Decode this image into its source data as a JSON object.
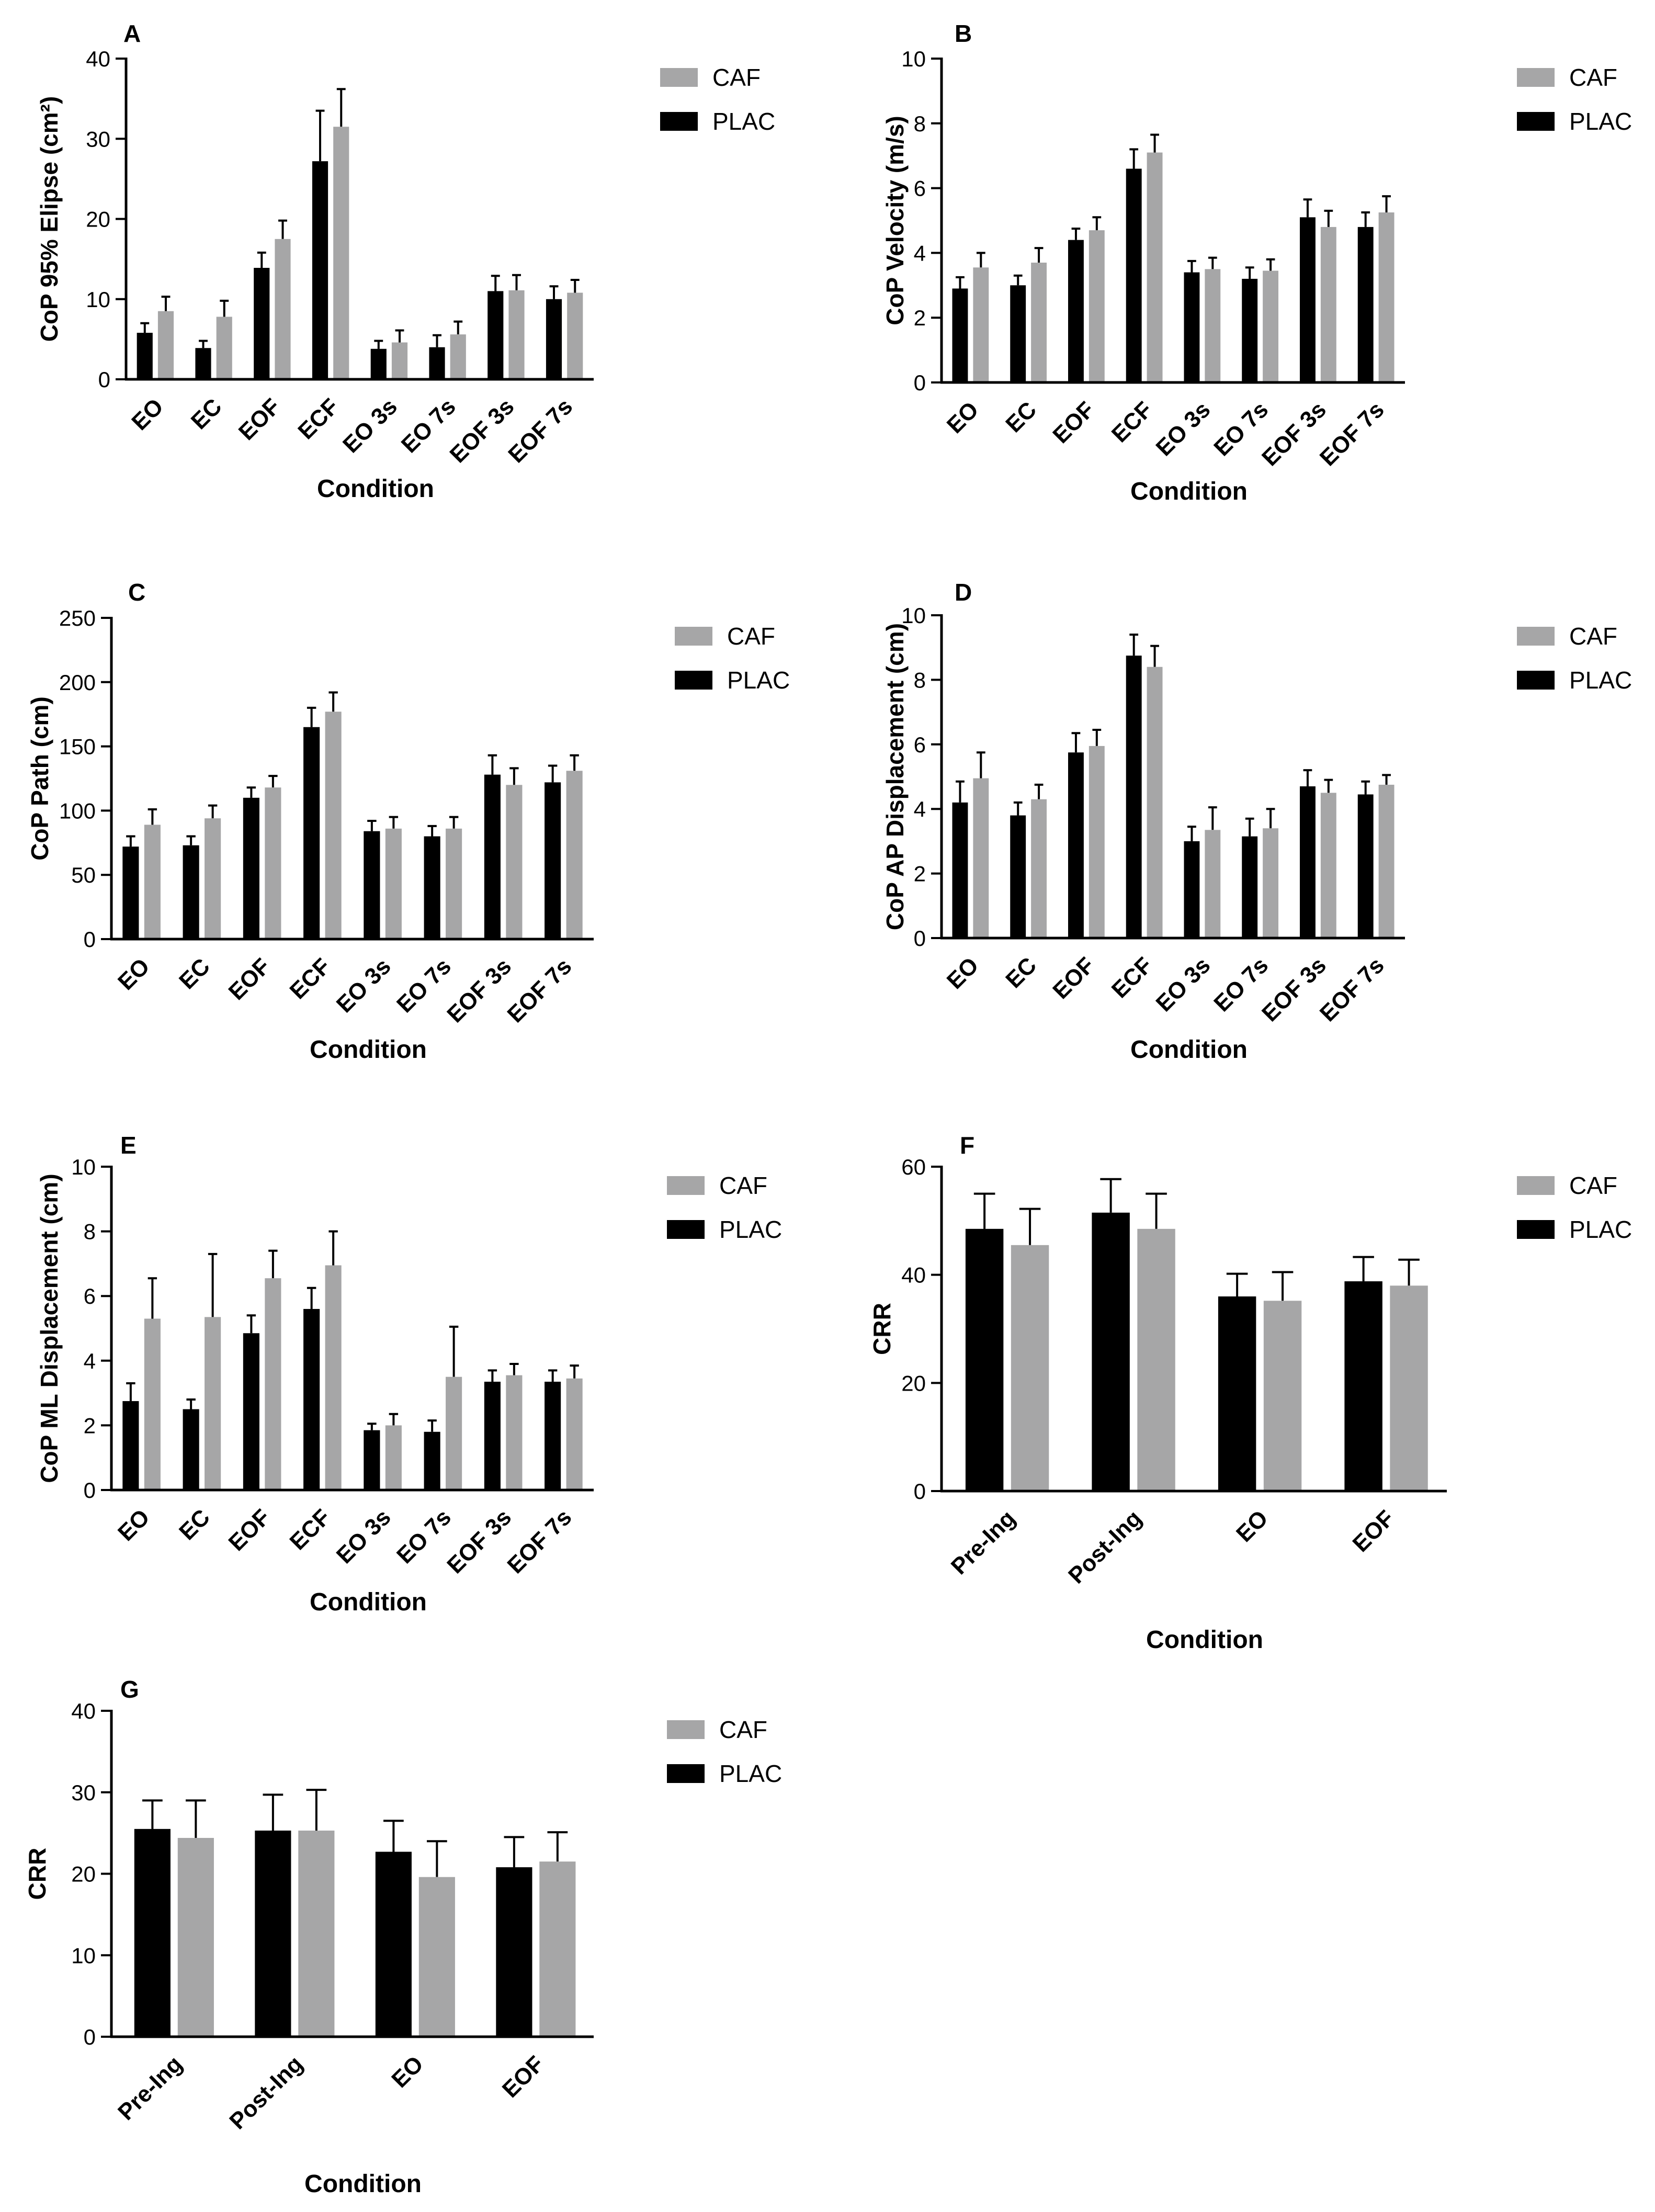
{
  "legend_labels": {
    "caf": "CAF",
    "plac": "PLAC"
  },
  "colors": {
    "caf": "#a6a6a7",
    "plac": "#000000"
  },
  "chart_data": [
    {
      "panel": "A",
      "type": "bar",
      "ylabel": "CoP 95% Elipse (cm²)",
      "xlabel": "Condition",
      "ylim": [
        0,
        40
      ],
      "yticks": [
        0,
        10,
        20,
        30,
        40
      ],
      "categories": [
        "EO",
        "EC",
        "EOF",
        "ECF",
        "EO 3s",
        "EO 7s",
        "EOF 3s",
        "EOF 7s"
      ],
      "series": [
        {
          "name": "PLAC",
          "values": [
            5.8,
            3.9,
            13.9,
            27.2,
            3.8,
            4.0,
            11.0,
            10.0
          ],
          "errors": [
            1.2,
            0.9,
            1.9,
            6.3,
            1.0,
            1.5,
            1.9,
            1.6
          ]
        },
        {
          "name": "CAF",
          "values": [
            8.5,
            7.8,
            17.5,
            31.5,
            4.6,
            5.6,
            11.1,
            10.8
          ],
          "errors": [
            1.8,
            2.0,
            2.3,
            4.7,
            1.5,
            1.6,
            1.9,
            1.6
          ]
        }
      ],
      "legend": "top-right"
    },
    {
      "panel": "B",
      "type": "bar",
      "ylabel": "CoP Velocity (m/s)",
      "xlabel": "Condition",
      "ylim": [
        0,
        10
      ],
      "yticks": [
        0,
        2,
        4,
        6,
        8,
        10
      ],
      "categories": [
        "EO",
        "EC",
        "EOF",
        "ECF",
        "EO 3s",
        "EO 7s",
        "EOF 3s",
        "EOF 7s"
      ],
      "series": [
        {
          "name": "PLAC",
          "values": [
            2.9,
            3.0,
            4.4,
            6.6,
            3.4,
            3.2,
            5.1,
            4.8
          ],
          "errors": [
            0.35,
            0.3,
            0.35,
            0.6,
            0.35,
            0.35,
            0.55,
            0.45
          ]
        },
        {
          "name": "CAF",
          "values": [
            3.55,
            3.7,
            4.7,
            7.1,
            3.5,
            3.45,
            4.8,
            5.25
          ],
          "errors": [
            0.45,
            0.45,
            0.4,
            0.55,
            0.35,
            0.35,
            0.5,
            0.5
          ]
        }
      ],
      "legend": "top-right"
    },
    {
      "panel": "C",
      "type": "bar",
      "ylabel": "CoP Path (cm)",
      "xlabel": "Condition",
      "ylim": [
        0,
        250
      ],
      "yticks": [
        0,
        50,
        100,
        150,
        200,
        250
      ],
      "categories": [
        "EO",
        "EC",
        "EOF",
        "ECF",
        "EO 3s",
        "EO 7s",
        "EOF 3s",
        "EOF 7s"
      ],
      "series": [
        {
          "name": "PLAC",
          "values": [
            72,
            73,
            110,
            165,
            84,
            80,
            128,
            122
          ],
          "errors": [
            8,
            7,
            8,
            15,
            8,
            8,
            15,
            13
          ]
        },
        {
          "name": "CAF",
          "values": [
            89,
            94,
            118,
            177,
            86,
            86,
            120,
            131
          ],
          "errors": [
            12,
            10,
            9,
            15,
            9,
            9,
            13,
            12
          ]
        }
      ],
      "legend": "top-right"
    },
    {
      "panel": "D",
      "type": "bar",
      "ylabel": "CoP AP Displacement (cm)",
      "xlabel": "Condition",
      "ylim": [
        0,
        10
      ],
      "yticks": [
        0,
        2,
        4,
        6,
        8,
        10
      ],
      "categories": [
        "EO",
        "EC",
        "EOF",
        "ECF",
        "EO 3s",
        "EO 7s",
        "EOF 3s",
        "EOF 7s"
      ],
      "series": [
        {
          "name": "PLAC",
          "values": [
            4.2,
            3.8,
            5.75,
            8.75,
            3.0,
            3.15,
            4.7,
            4.45
          ],
          "errors": [
            0.65,
            0.4,
            0.6,
            0.65,
            0.45,
            0.55,
            0.5,
            0.4
          ]
        },
        {
          "name": "CAF",
          "values": [
            4.95,
            4.3,
            5.95,
            8.4,
            3.35,
            3.4,
            4.5,
            4.75
          ],
          "errors": [
            0.8,
            0.45,
            0.5,
            0.65,
            0.7,
            0.6,
            0.4,
            0.3
          ]
        }
      ],
      "legend": "top-right"
    },
    {
      "panel": "E",
      "type": "bar",
      "ylabel": "CoP ML Displacement (cm)",
      "xlabel": "Condition",
      "ylim": [
        0,
        10
      ],
      "yticks": [
        0,
        2,
        4,
        6,
        8,
        10
      ],
      "categories": [
        "EO",
        "EC",
        "EOF",
        "ECF",
        "EO 3s",
        "EO 7s",
        "EOF 3s",
        "EOF 7s"
      ],
      "series": [
        {
          "name": "PLAC",
          "values": [
            2.75,
            2.5,
            4.85,
            5.6,
            1.85,
            1.8,
            3.35,
            3.35
          ],
          "errors": [
            0.55,
            0.3,
            0.55,
            0.65,
            0.2,
            0.35,
            0.35,
            0.35
          ]
        },
        {
          "name": "CAF",
          "values": [
            5.3,
            5.35,
            6.55,
            6.95,
            2.0,
            3.5,
            3.55,
            3.45
          ],
          "errors": [
            1.25,
            1.95,
            0.85,
            1.05,
            0.35,
            1.55,
            0.35,
            0.4
          ]
        }
      ],
      "legend": "top-right"
    },
    {
      "panel": "F",
      "type": "bar",
      "ylabel": "CRR",
      "xlabel": "Condition",
      "ylim": [
        0,
        60
      ],
      "yticks": [
        0,
        20,
        40,
        60
      ],
      "categories": [
        "Pre-Ing",
        "Post-Ing",
        "EO",
        "EOF"
      ],
      "series": [
        {
          "name": "PLAC",
          "values": [
            48.5,
            51.5,
            36.0,
            38.8
          ],
          "errors": [
            6.5,
            6.2,
            4.2,
            4.5
          ]
        },
        {
          "name": "CAF",
          "values": [
            45.5,
            48.5,
            35.2,
            38.0
          ],
          "errors": [
            6.7,
            6.5,
            5.3,
            4.8
          ]
        }
      ],
      "legend": "top-right"
    },
    {
      "panel": "G",
      "type": "bar",
      "ylabel": "CRR",
      "xlabel": "Condition",
      "ylim": [
        0,
        40
      ],
      "yticks": [
        0,
        10,
        20,
        30,
        40
      ],
      "categories": [
        "Pre-Ing",
        "Post-Ing",
        "EO",
        "EOF"
      ],
      "series": [
        {
          "name": "PLAC",
          "values": [
            25.5,
            25.3,
            22.7,
            20.8
          ],
          "errors": [
            3.5,
            4.4,
            3.8,
            3.7
          ]
        },
        {
          "name": "CAF",
          "values": [
            24.4,
            25.3,
            19.6,
            21.5
          ],
          "errors": [
            4.6,
            5.0,
            4.4,
            3.6
          ]
        }
      ],
      "legend": "top-right"
    }
  ]
}
